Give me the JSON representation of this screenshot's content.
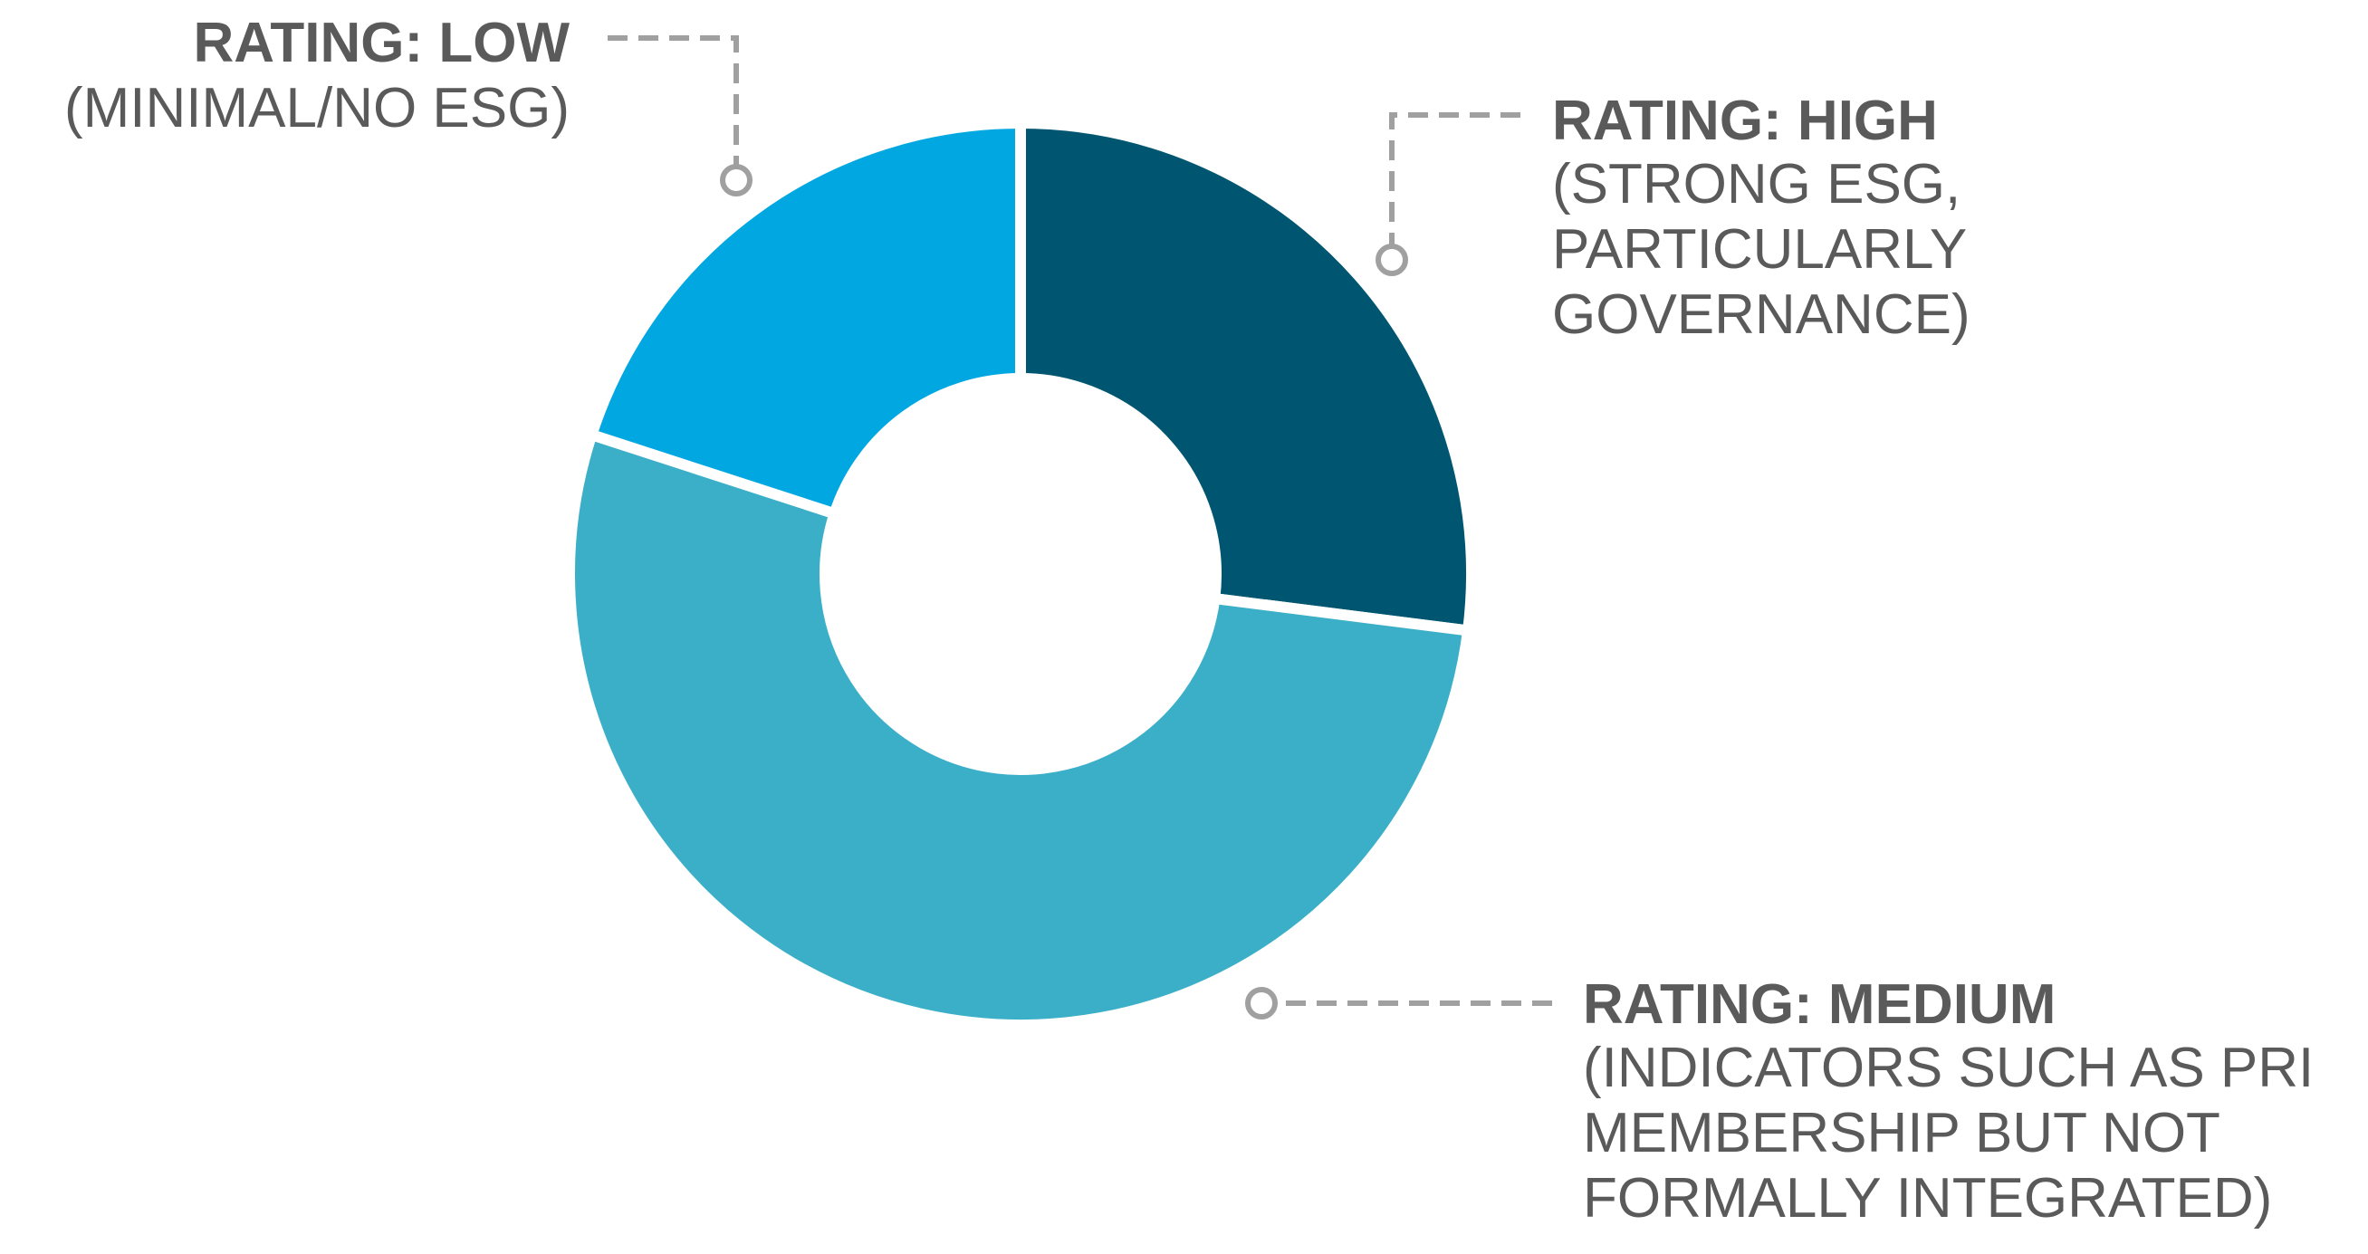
{
  "chart_data": {
    "type": "donut",
    "categories": [
      "RATING: HIGH",
      "RATING: MEDIUM",
      "RATING: LOW"
    ],
    "descriptions": [
      [
        "(STRONG ESG,",
        "PARTICULARLY",
        "GOVERNANCE)"
      ],
      [
        "(INDICATORS SUCH AS PRI",
        "MEMBERSHIP BUT NOT",
        "FORMALLY INTEGRATED)"
      ],
      [
        "(MINIMAL/NO ESG)"
      ]
    ],
    "values": [
      27,
      53,
      20
    ],
    "colors": [
      "#005670",
      "#3bafc8",
      "#00a7e1"
    ]
  }
}
